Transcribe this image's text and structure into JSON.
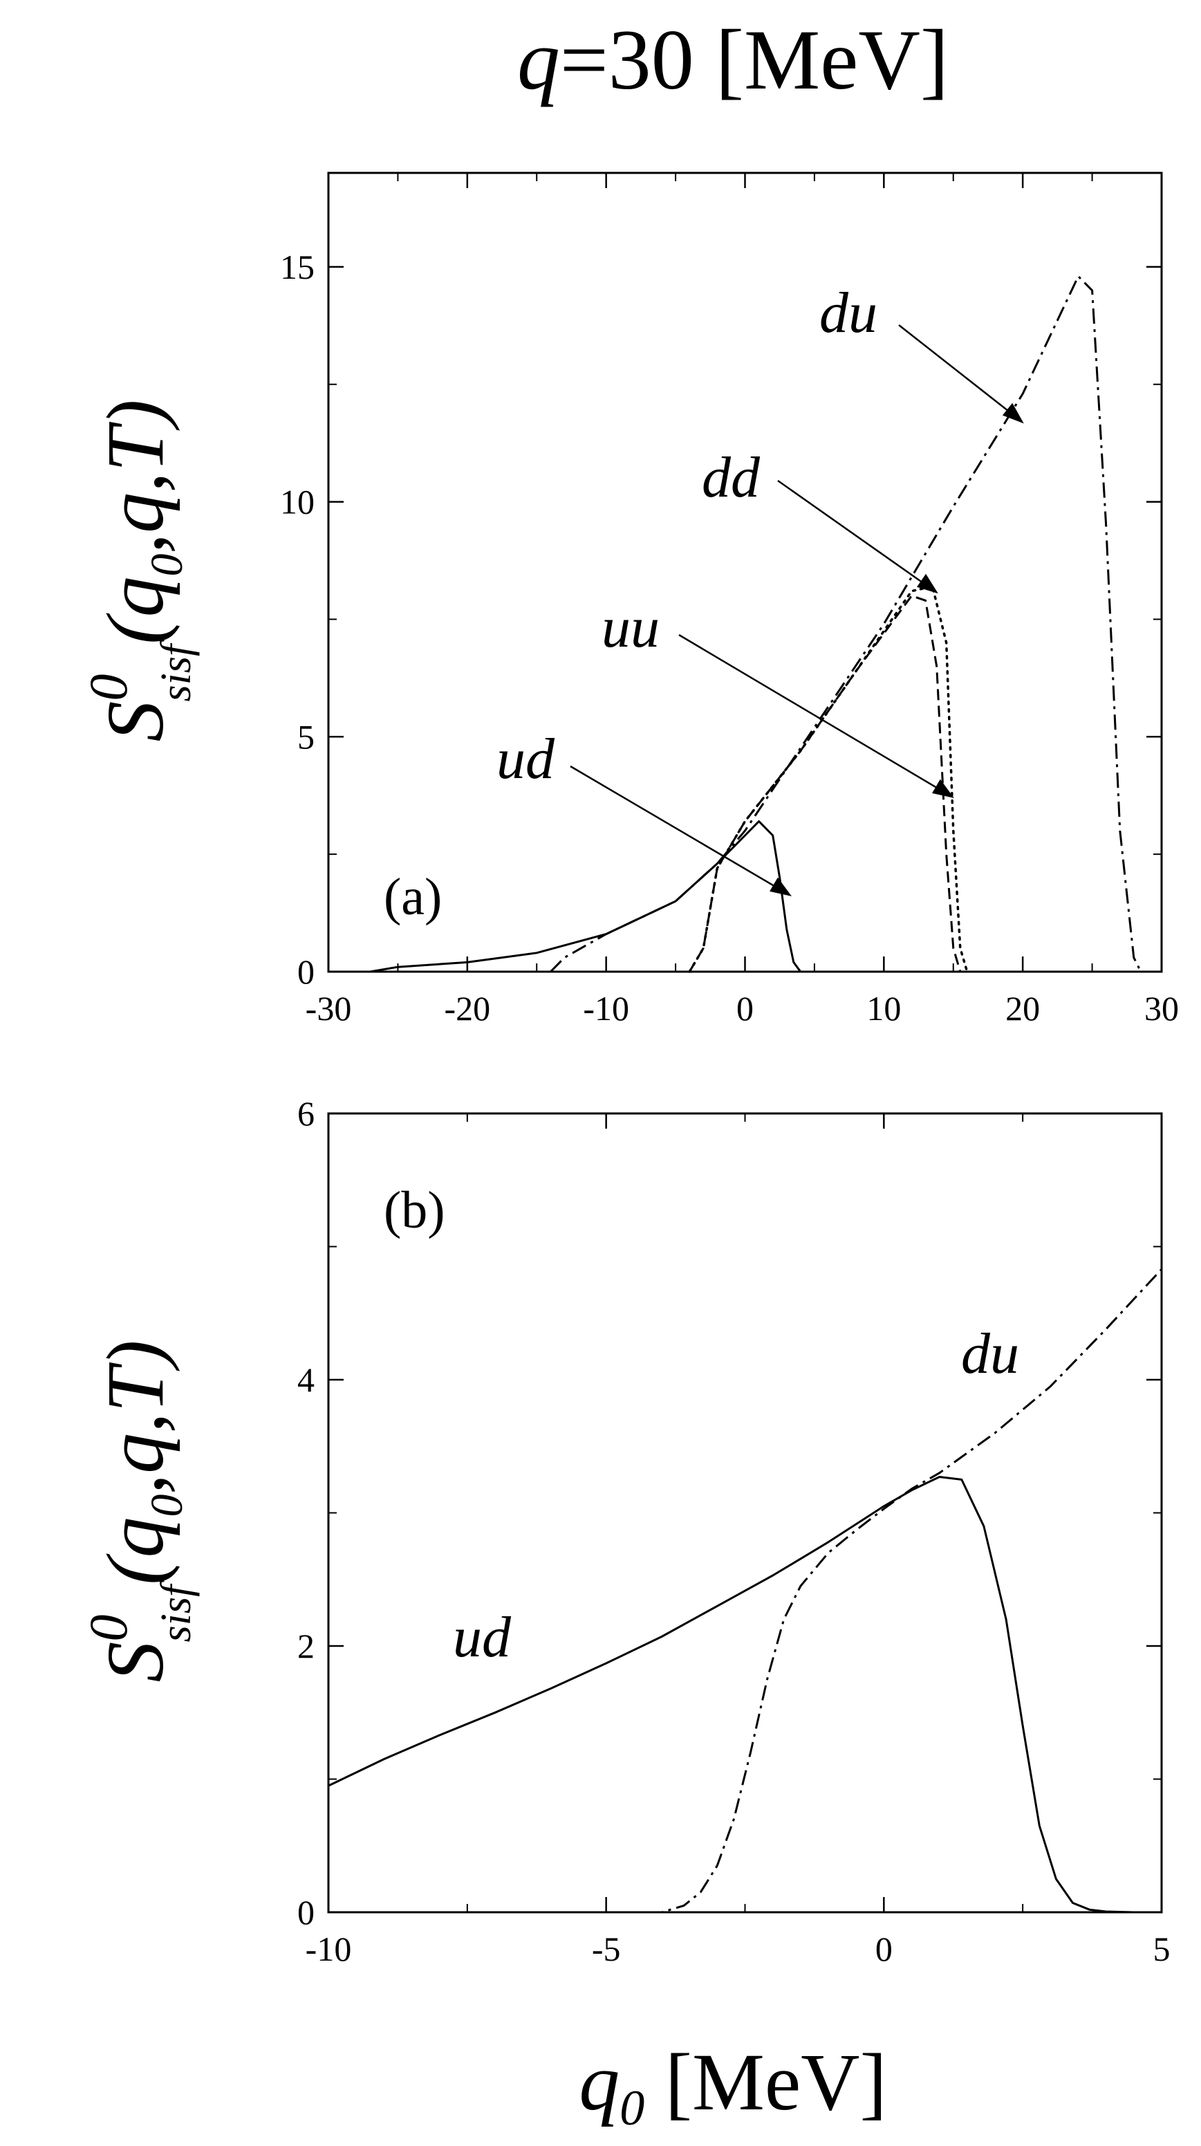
{
  "figure": {
    "title_var": "q",
    "title_rest": "=30 [MeV]",
    "xlabel_var": "q",
    "xlabel_sub": "0",
    "xlabel_unit": " [MeV]",
    "ylabel_main": "S",
    "ylabel_sup": "0",
    "ylabel_sub": "sisf",
    "ylabel_args": "(q",
    "ylabel_args_sub": "0",
    "ylabel_args_rest": ",q,T)"
  },
  "chart_data": [
    {
      "type": "line",
      "panel_label": "(a)",
      "xlim": [
        -30,
        30
      ],
      "ylim": [
        0,
        17
      ],
      "x_ticks": [
        -30,
        -20,
        -10,
        0,
        10,
        20,
        30
      ],
      "y_ticks": [
        0,
        5,
        10,
        15
      ],
      "series": [
        {
          "name": "ud",
          "style": "solid",
          "x": [
            -27,
            -25,
            -20,
            -15,
            -10,
            -5,
            -2,
            0,
            1,
            2,
            2.5,
            3,
            3.5,
            4
          ],
          "y": [
            0,
            0.1,
            0.2,
            0.4,
            0.8,
            1.5,
            2.3,
            2.9,
            3.2,
            2.9,
            2.0,
            0.9,
            0.2,
            0
          ]
        },
        {
          "name": "uu",
          "style": "dotted",
          "x": [
            -4,
            -3,
            -2,
            0,
            4,
            8,
            12,
            13.5,
            14.5,
            15,
            15.5,
            16
          ],
          "y": [
            0,
            0.5,
            2.2,
            3.2,
            4.7,
            6.4,
            8.1,
            8.2,
            7.0,
            3.0,
            0.5,
            0
          ]
        },
        {
          "name": "dd",
          "style": "dashed",
          "x": [
            -4,
            -3,
            -2,
            0,
            4,
            8,
            12,
            13,
            13.8,
            14.5,
            15,
            15.5
          ],
          "y": [
            0,
            0.5,
            2.2,
            3.2,
            4.7,
            6.4,
            8.0,
            7.9,
            6.5,
            2.5,
            0.5,
            0
          ]
        },
        {
          "name": "du",
          "style": "dashdot",
          "x": [
            -14,
            -13,
            -10,
            -5,
            -2,
            0,
            5,
            10,
            15,
            20,
            24,
            25,
            26,
            27,
            28,
            28.5
          ],
          "y": [
            0,
            0.3,
            0.8,
            1.5,
            2.3,
            3.0,
            5.2,
            7.4,
            9.9,
            12.3,
            14.8,
            14.5,
            9.5,
            3.0,
            0.3,
            0
          ]
        }
      ],
      "annotations": [
        "du",
        "dd",
        "uu",
        "ud"
      ]
    },
    {
      "type": "line",
      "panel_label": "(b)",
      "xlim": [
        -10,
        5
      ],
      "ylim": [
        0,
        6
      ],
      "x_ticks": [
        -10,
        -5,
        0,
        5
      ],
      "y_ticks": [
        0,
        2,
        4,
        6
      ],
      "series": [
        {
          "name": "ud",
          "style": "solid",
          "x": [
            -10,
            -9,
            -8,
            -7,
            -6,
            -5,
            -4,
            -3,
            -2,
            -1,
            0,
            0.5,
            1,
            1.4,
            1.8,
            2.2,
            2.5,
            2.8,
            3.1,
            3.4,
            3.7,
            4,
            4.5,
            5
          ],
          "y": [
            0.95,
            1.15,
            1.33,
            1.5,
            1.68,
            1.87,
            2.07,
            2.3,
            2.53,
            2.78,
            3.05,
            3.17,
            3.27,
            3.25,
            2.9,
            2.2,
            1.4,
            0.65,
            0.25,
            0.07,
            0.02,
            0.005,
            0,
            0
          ]
        },
        {
          "name": "du",
          "style": "dashdot",
          "x": [
            -10,
            -4,
            -3.6,
            -3.3,
            -3.0,
            -2.7,
            -2.4,
            -2.1,
            -1.8,
            -1.5,
            -1.0,
            -0.5,
            0,
            0.5,
            1,
            2,
            3,
            4,
            5
          ],
          "y": [
            0,
            0,
            0.05,
            0.15,
            0.35,
            0.7,
            1.2,
            1.75,
            2.2,
            2.45,
            2.7,
            2.87,
            3.03,
            3.18,
            3.3,
            3.6,
            3.95,
            4.38,
            4.83
          ]
        }
      ],
      "annotations": [
        "du",
        "ud"
      ]
    }
  ]
}
